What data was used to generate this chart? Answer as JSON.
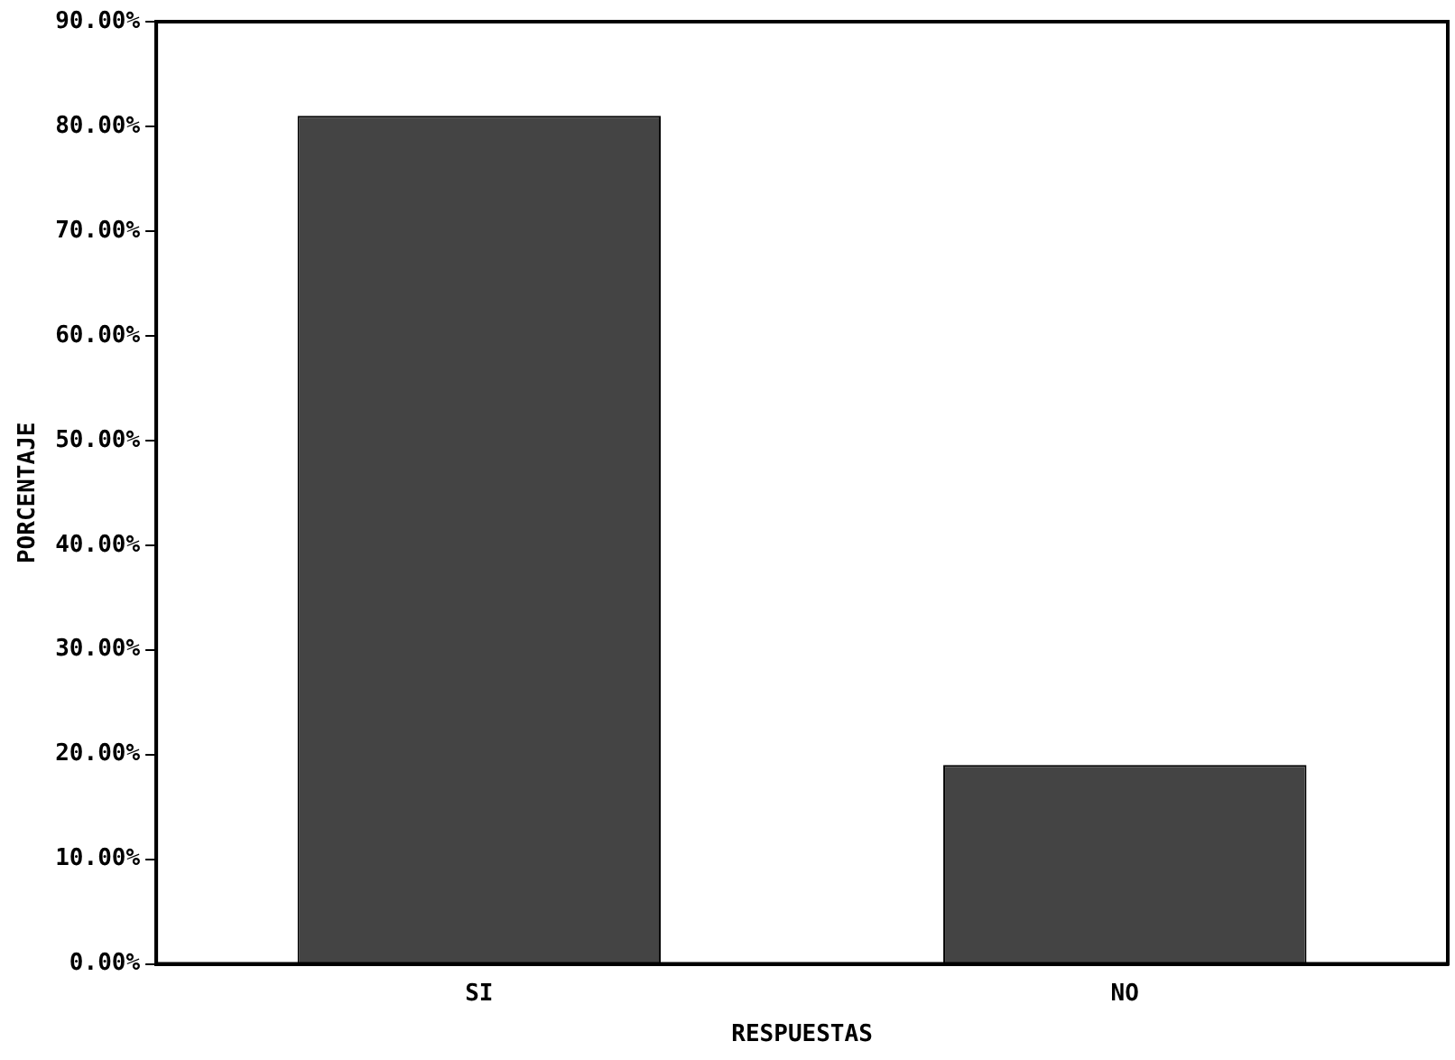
{
  "chart_data": {
    "type": "bar",
    "xlabel": "RESPUESTAS",
    "ylabel": "PORCENTAJE",
    "categories": [
      "SI",
      "NO"
    ],
    "series": [
      {
        "color": "#444444",
        "values": [
          81,
          19
        ]
      }
    ],
    "ylim": [
      0,
      90
    ],
    "yticks": [
      {
        "value": 0,
        "label": "0.00%"
      },
      {
        "value": 10,
        "label": "10.00%"
      },
      {
        "value": 20,
        "label": "20.00%"
      },
      {
        "value": 30,
        "label": "30.00%"
      },
      {
        "value": 40,
        "label": "40.00%"
      },
      {
        "value": 50,
        "label": "50.00%"
      },
      {
        "value": 60,
        "label": "60.00%"
      },
      {
        "value": 70,
        "label": "70.00%"
      },
      {
        "value": 80,
        "label": "80.00%"
      },
      {
        "value": 90,
        "label": "90.00%"
      }
    ],
    "grid": false,
    "legend": false
  }
}
